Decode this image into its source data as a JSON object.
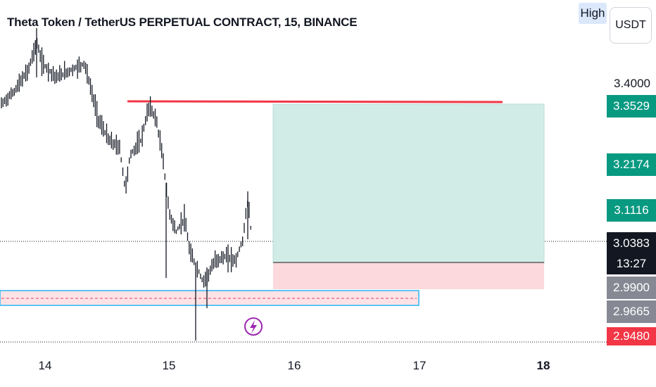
{
  "chart": {
    "title": "Theta Token / TetherUS PERPETUAL CONTRACT, 15, BINANCE",
    "high_button": "High",
    "currency_button": "USDT"
  },
  "price_axis": {
    "plain_label": "3.4000",
    "tags": [
      {
        "value": "3.3529",
        "style": "teal"
      },
      {
        "value": "3.2174",
        "style": "teal"
      },
      {
        "value": "3.1116",
        "style": "teal"
      },
      {
        "value": "3.0383",
        "style": "dark"
      },
      {
        "value": "2.9900",
        "style": "gray"
      },
      {
        "value": "2.9665",
        "style": "gray"
      },
      {
        "value": "2.9480",
        "style": "red"
      }
    ],
    "countdown": "13:27"
  },
  "time_axis": {
    "labels": [
      "14",
      "15",
      "16",
      "17",
      "18"
    ],
    "highlighted": "18"
  },
  "colors": {
    "up_down_bar": "#131722",
    "resistance_line": "#f23645",
    "profit_zone": "#d1ece6",
    "loss_zone": "#fbd9dc",
    "support_box_border": "#29b6f6",
    "support_box_fill": "#fde3e6",
    "flash_icon": "#9c27b0"
  },
  "icons": {
    "flash": "lightning-bolt-icon"
  }
}
